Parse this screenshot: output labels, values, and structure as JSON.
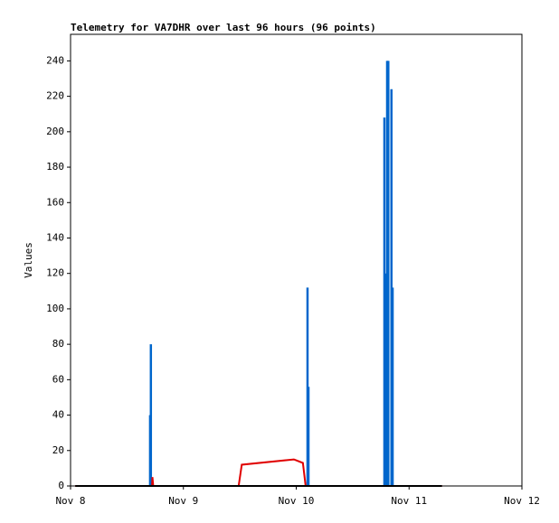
{
  "chart_data": {
    "type": "line",
    "title": "Telemetry for VA7DHR over last 96 hours (96 points)",
    "y_label": "Values",
    "xlim": [
      "Nov 8",
      "Nov 12"
    ],
    "xticks": [
      "Nov 8",
      "Nov 9",
      "Nov 10",
      "Nov 11",
      "Nov 12"
    ],
    "ylim": [
      0,
      255
    ],
    "yticks": [
      0,
      20,
      40,
      60,
      80,
      100,
      120,
      140,
      160,
      180,
      200,
      220,
      240
    ],
    "series": [
      {
        "color": "#000000",
        "style": "line",
        "x": [
          "Nov 8 01:00",
          "Nov 11 07:00"
        ],
        "values": [
          0,
          0
        ]
      },
      {
        "color": "#e00000",
        "style": "line",
        "x": [
          "Nov 8 01:00",
          "Nov 8 17:20",
          "Nov 8 17:25",
          "Nov 8 17:35",
          "Nov 9 11:45",
          "Nov 9 12:25",
          "Nov 9 23:30",
          "Nov 10 01:25",
          "Nov 10 02:00",
          "Nov 11 07:00"
        ],
        "values": [
          0,
          0,
          5,
          0,
          0,
          12,
          15,
          13,
          0,
          0
        ]
      },
      {
        "color": "#0066cc",
        "style": "impulse",
        "x": [
          "Nov 8 16:55",
          "Nov 8 17:05",
          "Nov 10 02:24",
          "Nov 10 02:36",
          "Nov 10 18:45",
          "Nov 10 18:55",
          "Nov 10 19:20",
          "Nov 10 19:35",
          "Nov 10 20:15",
          "Nov 10 20:30"
        ],
        "values": [
          40,
          80,
          112,
          56,
          208,
          120,
          240,
          240,
          224,
          112
        ]
      }
    ]
  }
}
